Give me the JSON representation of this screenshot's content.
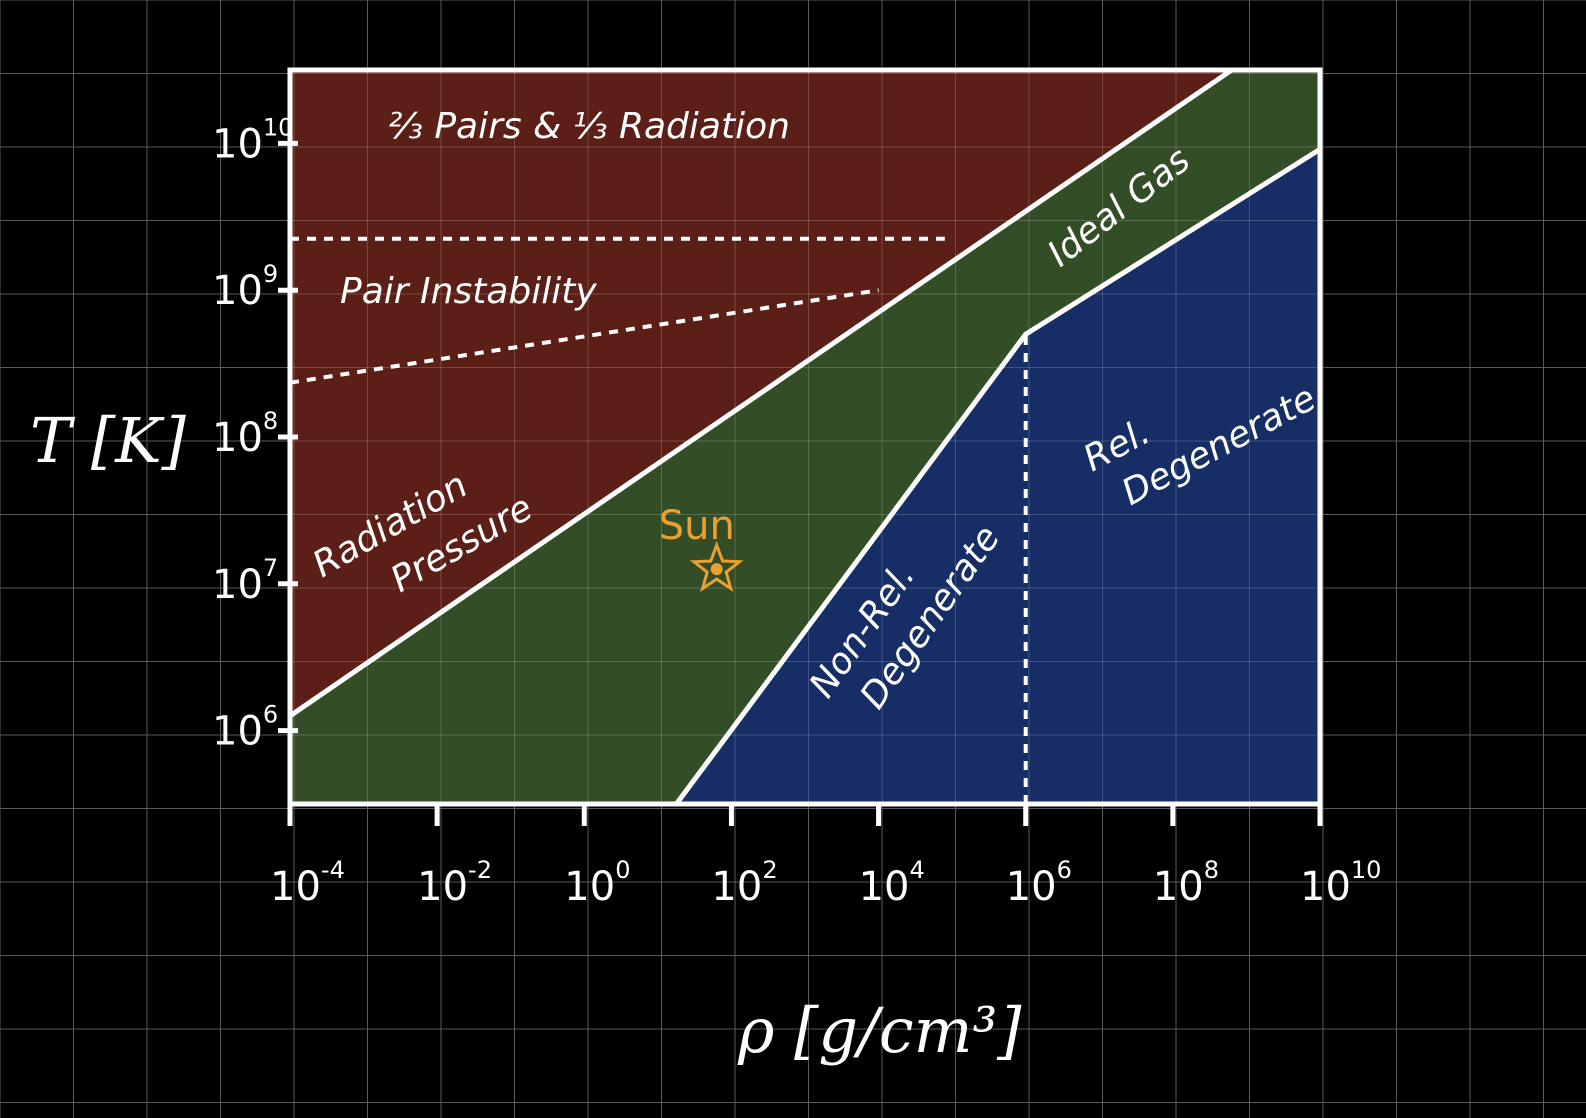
{
  "chart_data": {
    "type": "area",
    "title": "",
    "xlabel": "ρ [g/cm³]",
    "ylabel": "T [K]",
    "x_scale": "log",
    "y_scale": "log",
    "xlim_log10": [
      -4,
      10
    ],
    "ylim_log10": [
      5.5,
      10.5
    ],
    "x_ticks": [
      {
        "base": "10",
        "exp": "-4",
        "value": -4
      },
      {
        "base": "10",
        "exp": "-2",
        "value": -2
      },
      {
        "base": "10",
        "exp": "0",
        "value": 0
      },
      {
        "base": "10",
        "exp": "2",
        "value": 2
      },
      {
        "base": "10",
        "exp": "4",
        "value": 4
      },
      {
        "base": "10",
        "exp": "6",
        "value": 6
      },
      {
        "base": "10",
        "exp": "8",
        "value": 8
      },
      {
        "base": "10",
        "exp": "10",
        "value": 10
      }
    ],
    "y_ticks": [
      {
        "base": "10",
        "exp": "6",
        "value": 6
      },
      {
        "base": "10",
        "exp": "7",
        "value": 7
      },
      {
        "base": "10",
        "exp": "8",
        "value": 8
      },
      {
        "base": "10",
        "exp": "9",
        "value": 9
      },
      {
        "base": "10",
        "exp": "10",
        "value": 10
      }
    ],
    "grid": true,
    "boundaries_log10": {
      "radiation_ideal": [
        [
          -4,
          6.1
        ],
        [
          8.8,
          10.5
        ]
      ],
      "ideal_degenerate": [
        [
          1.25,
          5.5
        ],
        [
          6,
          8.7
        ],
        [
          10,
          9.96
        ]
      ],
      "relativistic_divider": [
        [
          6,
          5.5
        ],
        [
          6,
          8.7
        ]
      ],
      "pair_instability_upper": [
        [
          -4,
          9.35
        ],
        [
          4.9,
          9.35
        ]
      ],
      "pair_instability_lower": [
        [
          -4,
          8.37
        ],
        [
          4,
          9.0
        ]
      ]
    },
    "regions": [
      {
        "label_lines": [
          "⅔ Pairs & ⅓ Radiation"
        ],
        "color": "#5c1f18"
      },
      {
        "label_lines": [
          "Pair Instability"
        ],
        "color": "#5c1f18"
      },
      {
        "label_lines": [
          "Radiation",
          "Pressure"
        ],
        "color": "#5c1f18"
      },
      {
        "label_lines": [
          "Ideal Gas"
        ],
        "color": "#334d26"
      },
      {
        "label_lines": [
          "Non-Rel.",
          "Degenerate"
        ],
        "color": "#162d66"
      },
      {
        "label_lines": [
          "Rel.",
          "Degenerate"
        ],
        "color": "#162d66"
      }
    ],
    "annotations": [
      {
        "text": "Sun",
        "x_log10": 1.8,
        "y_log10": 7.1,
        "color": "#e8a030"
      }
    ]
  },
  "colors": {
    "background": "#000000",
    "grid": "#5a5a5a",
    "radiation": "#5c1f18",
    "ideal_gas": "#334d26",
    "degenerate": "#162d66",
    "lines": "#ffffff",
    "sun": "#e8a030"
  }
}
